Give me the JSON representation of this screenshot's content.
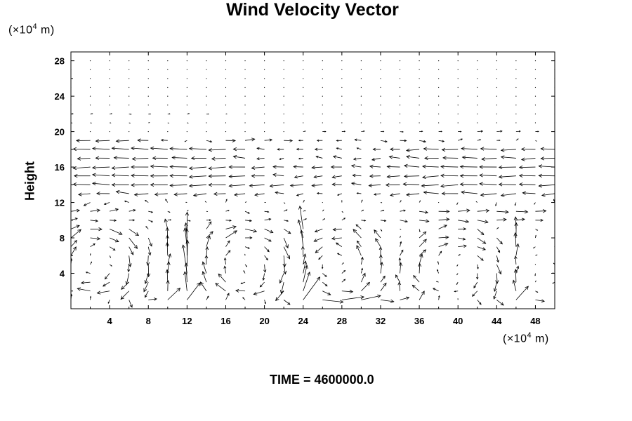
{
  "chart_data": {
    "type": "quiver",
    "title": "Wind Velocity Vector",
    "ylabel": "Height",
    "x_unit": {
      "prefix": "(×10",
      "exp": "4",
      "suffix": " m)"
    },
    "y_unit": {
      "prefix": "(×10",
      "exp": "4",
      "suffix": " m)"
    },
    "xlim": [
      0,
      50
    ],
    "ylim": [
      0,
      29
    ],
    "x_ticks": [
      4,
      8,
      12,
      16,
      20,
      24,
      28,
      32,
      36,
      40,
      44,
      48
    ],
    "y_ticks": [
      4,
      8,
      12,
      16,
      20,
      24,
      28
    ],
    "grid": false,
    "legend": "none",
    "field": {
      "x_spacing": 2,
      "y_spacing": 1,
      "upper_layers": [
        {
          "y": 19,
          "u": [
            -1.3,
            -1.3,
            -1.3,
            -1.2,
            -1.0,
            -0.6,
            -0.2,
            0.5,
            0.9,
            0.9,
            0.7,
            0.8,
            -0.4,
            -0.5,
            -0.5,
            -0.6,
            0.6,
            0.6,
            0.6,
            0.5,
            0.4,
            0.3,
            0.3,
            0.2,
            0.1
          ],
          "v_amp": 0.15
        },
        {
          "y": 18,
          "u": [
            -1.3,
            -1.6,
            -1.6,
            -1.6,
            -1.6,
            -1.6,
            -1.6,
            -1.6,
            -1.6,
            -1.1,
            -0.7,
            -0.6,
            -0.6,
            -0.7,
            -0.5,
            -0.4,
            -0.7,
            -0.9,
            -1.2,
            -1.4,
            -1.5,
            -1.5,
            -1.5,
            -1.4,
            -1.3
          ],
          "v_amp": 0.12
        },
        {
          "y": 17,
          "u": [
            -1.0,
            -1.2,
            -1.3,
            -1.4,
            -1.5,
            -1.4,
            -1.4,
            -1.4,
            -1.3,
            -1.1,
            -0.7,
            -0.4,
            -0.4,
            -0.6,
            -0.8,
            -0.7,
            -0.8,
            -1.0,
            -1.2,
            -1.3,
            -1.4,
            -1.4,
            -1.4,
            -1.4,
            -1.3
          ],
          "v_amp": 0.2
        },
        {
          "y": 16,
          "u": [
            -1.4,
            -1.6,
            -1.6,
            -1.6,
            -1.6,
            -1.6,
            -1.6,
            -1.6,
            -1.6,
            -1.5,
            -1.2,
            -1.0,
            -0.9,
            -1.0,
            -1.0,
            -0.9,
            -1.0,
            -1.2,
            -1.4,
            -1.5,
            -1.6,
            -1.6,
            -1.6,
            -1.6,
            -1.5
          ],
          "v_amp": 0.15
        },
        {
          "y": 15,
          "u": [
            -1.4,
            -1.5,
            -1.6,
            -1.6,
            -1.6,
            -1.6,
            -1.6,
            -1.6,
            -1.6,
            -1.5,
            -1.2,
            -1.0,
            -0.8,
            -0.8,
            -0.9,
            -0.8,
            -1.0,
            -1.2,
            -1.4,
            -1.5,
            -1.6,
            -1.6,
            -1.6,
            -1.6,
            -1.5
          ],
          "v_amp": 0.15
        },
        {
          "y": 14,
          "u": [
            -1.5,
            -1.6,
            -1.6,
            -1.6,
            -1.6,
            -1.6,
            -1.6,
            -1.6,
            -1.6,
            -1.5,
            -1.4,
            -1.3,
            -1.2,
            -1.0,
            -0.9,
            -0.9,
            -1.1,
            -1.3,
            -1.5,
            -1.6,
            -1.6,
            -1.6,
            -1.6,
            -1.6,
            -1.5
          ],
          "v_amp": 0.15
        },
        {
          "y": 13,
          "u": [
            -1.0,
            -1.1,
            -1.2,
            -1.2,
            -1.3,
            -1.2,
            -1.2,
            -1.2,
            -1.1,
            -1.0,
            -0.9,
            -0.8,
            -0.6,
            -0.5,
            -0.4,
            -0.4,
            -0.6,
            -0.9,
            -1.2,
            -1.4,
            -1.5,
            -1.5,
            -1.5,
            -1.4,
            -1.2
          ],
          "v_amp": 0.2
        },
        {
          "y": 12,
          "u": [
            -0.6,
            -0.6,
            -0.5,
            -0.4,
            -0.3,
            -0.2,
            -0.1,
            -0.1,
            0.1,
            0.1,
            0.1,
            0.1,
            0.1,
            0.0,
            0.0,
            0.1,
            0.1,
            0.1,
            0.1,
            0.0,
            -0.1,
            -0.1,
            -0.1,
            -0.1,
            -0.1
          ],
          "v_amp": 0.3
        },
        {
          "y": 11,
          "u": [
            0.8,
            0.9,
            0.8,
            0.6,
            0.4,
            0.2,
            0.1,
            0.1,
            0.3,
            0.4,
            0.4,
            0.3,
            0.2,
            0.1,
            0.1,
            0.2,
            0.3,
            0.5,
            0.8,
            1.0,
            1.1,
            1.1,
            1.1,
            1.1,
            1.0
          ],
          "v_amp": 0.2
        },
        {
          "y": 10,
          "u": [
            0.6,
            0.7,
            0.6,
            0.5,
            0.4,
            0.3,
            0.3,
            0.4,
            0.5,
            0.6,
            0.6,
            0.4,
            0.3,
            0.2,
            0.3,
            0.4,
            0.5,
            0.7,
            0.9,
            1.0,
            1.0,
            1.0,
            0.9,
            0.8,
            0.7
          ],
          "v_amp": 0.2
        },
        {
          "y": 20,
          "u": [
            0.0,
            0.0,
            0.0,
            0.0,
            0.0,
            0.0,
            0.0,
            0.0,
            0.0,
            0.0,
            0.0,
            0.0,
            0.2,
            0.3,
            0.3,
            0.3,
            0.3,
            0.3,
            0.3,
            0.3,
            0.3,
            0.5,
            0.5,
            0.4,
            0.3
          ],
          "v_amp": 0.05
        },
        {
          "y": 21,
          "u": [
            0.1,
            0.1,
            0.1,
            0.1,
            0.1,
            0.1,
            0.1,
            0.0,
            0.0,
            0.0,
            0.0,
            0.0,
            0.0,
            0.0,
            0.0,
            0.0,
            0.0,
            0.0,
            0.0,
            0.0,
            0.0,
            0.0,
            0.0,
            0.0,
            0.0
          ],
          "v_amp": 0.03
        },
        {
          "y": 22,
          "u": [
            0.2,
            0.2,
            0.2,
            0.2,
            0.2,
            0.2,
            0.2,
            0.2,
            0.1,
            0.0,
            0.0,
            0.0,
            0.0,
            0.0,
            0.0,
            0.0,
            0.0,
            0.0,
            0.0,
            0.0,
            0.0,
            0.0,
            0.0,
            0.0,
            0.0
          ],
          "v_amp": 0.04
        }
      ],
      "eddies": [
        {
          "cx": 2.5,
          "cy": 5.2,
          "rx": 5.5,
          "ry": 4.8,
          "strength": 2.2,
          "dir": -1
        },
        {
          "cx": 18.0,
          "cy": 5.0,
          "rx": 5.0,
          "ry": 4.6,
          "strength": 2.0,
          "dir": -1
        },
        {
          "cx": 27.5,
          "cy": 5.0,
          "rx": 4.2,
          "ry": 4.6,
          "strength": 1.8,
          "dir": 1
        },
        {
          "cx": 39.5,
          "cy": 4.2,
          "rx": 5.2,
          "ry": 4.4,
          "strength": 1.7,
          "dir": -1
        }
      ],
      "jets": [
        {
          "x": 10.5,
          "width": 0.7,
          "strength": 1.8
        },
        {
          "x": 12.0,
          "width": 0.7,
          "strength": 1.6
        },
        {
          "x": 24.0,
          "width": 0.6,
          "strength": 2.6
        },
        {
          "x": 46.0,
          "width": 0.6,
          "strength": 1.2
        }
      ],
      "bottom_flow": {
        "from_y": 0,
        "to_y": 1.6,
        "u": 1.0
      }
    }
  },
  "footer": {
    "time_label": "TIME = 4600000.0"
  }
}
